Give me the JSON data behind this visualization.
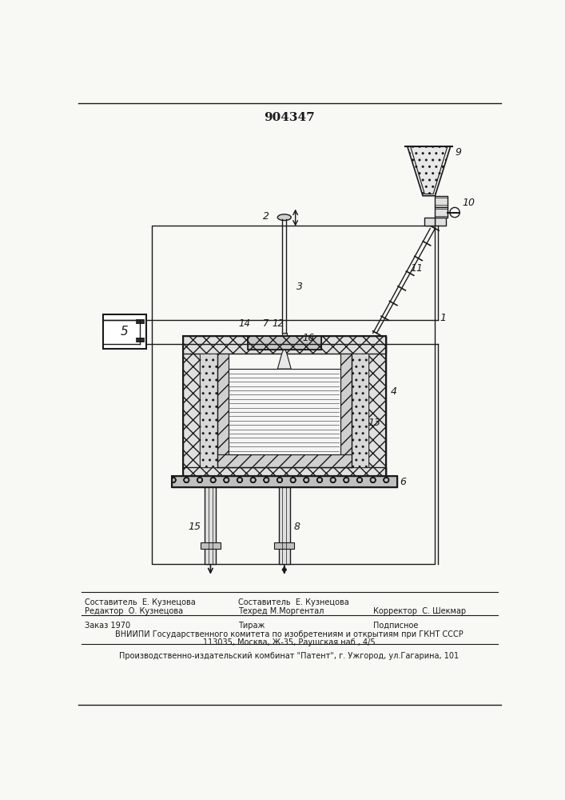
{
  "patent_number": "904347",
  "bg_color": "#f8f8f5",
  "line_color": "#1a1a1a",
  "footer_line1_left": "Редактор  О. Кузнецова",
  "footer_line1_center_top": "Составитель  Е. Кузнецова",
  "footer_line1_center": "Техред М.Моргентал",
  "footer_line1_right": "Корректор  С. Шекмар",
  "footer_line2_col1": "Заказ 1970",
  "footer_line2_col2": "Тираж",
  "footer_line2_col3": "Подписное",
  "footer_line3": "ВНИИПИ Государственного комитета по изобретениям и открытиям при ГКНТ СССР",
  "footer_line4": "113035, Москва, Ж-35, Раушская наб., 4/5",
  "footer_line5": "Производственно-издательский комбинат \"Патент\", г. Ужгород, ул.Гагарина, 101"
}
